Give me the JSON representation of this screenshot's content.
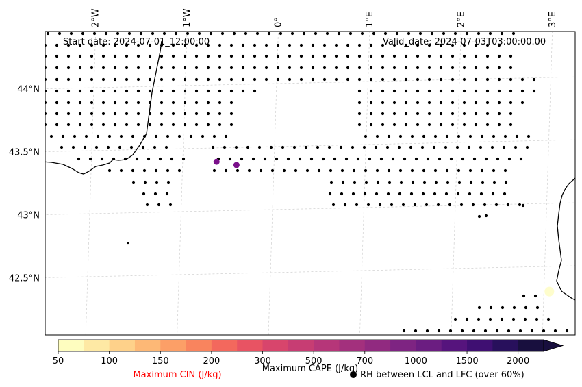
{
  "map": {
    "start_label": "Start date: 2024-07-01_12:00:00",
    "valid_label": "Valid_date: 2024-07-03T03:00:00.00",
    "lon_ticks": [
      {
        "label": "2°W",
        "lon": -2
      },
      {
        "label": "1°W",
        "lon": -1
      },
      {
        "label": "0°",
        "lon": 0
      },
      {
        "label": "1°E",
        "lon": 1
      },
      {
        "label": "2°E",
        "lon": 2
      },
      {
        "label": "3°E",
        "lon": 3
      }
    ],
    "lat_ticks": [
      {
        "label": "44°N",
        "lat": 44.0
      },
      {
        "label": "43.5°N",
        "lat": 43.5
      },
      {
        "label": "43°N",
        "lat": 43.0
      },
      {
        "label": "42.5°N",
        "lat": 42.5
      }
    ],
    "extent": {
      "lon_min": -2.52,
      "lon_max": 3.2,
      "lat_min": 42.0,
      "lat_max": 44.42
    },
    "cape_points": [
      {
        "lon": -0.63,
        "lat": 43.39,
        "cape": 1400
      },
      {
        "lon": -0.41,
        "lat": 43.36,
        "cape": 1400
      },
      {
        "lon": 3.06,
        "lat": 42.3,
        "cape": 50
      }
    ],
    "small_markers": [
      {
        "lon": -1.57,
        "lat": 42.76
      }
    ]
  },
  "colorbar": {
    "levels": [
      "50",
      "100",
      "150",
      "200",
      "300",
      "500",
      "700",
      "1000",
      "1500",
      "2000"
    ],
    "colors": [
      "#fefdbf",
      "#fee9a4",
      "#fed18a",
      "#fdb876",
      "#fc9f67",
      "#f9845e",
      "#f3685d",
      "#e85363",
      "#d8456c",
      "#c73d73",
      "#b63679",
      "#a3307d",
      "#912a80",
      "#7e2482",
      "#6b1d81",
      "#56147d",
      "#3f0f72",
      "#28105c",
      "#180f3e"
    ],
    "cape_label": "Maximum CAPE (J/kg)",
    "cin_label": "Maximum CIN (J/kg)",
    "cin_color": "#ff0000",
    "rh_label": "RH between LCL and LFC (over 60%)"
  }
}
